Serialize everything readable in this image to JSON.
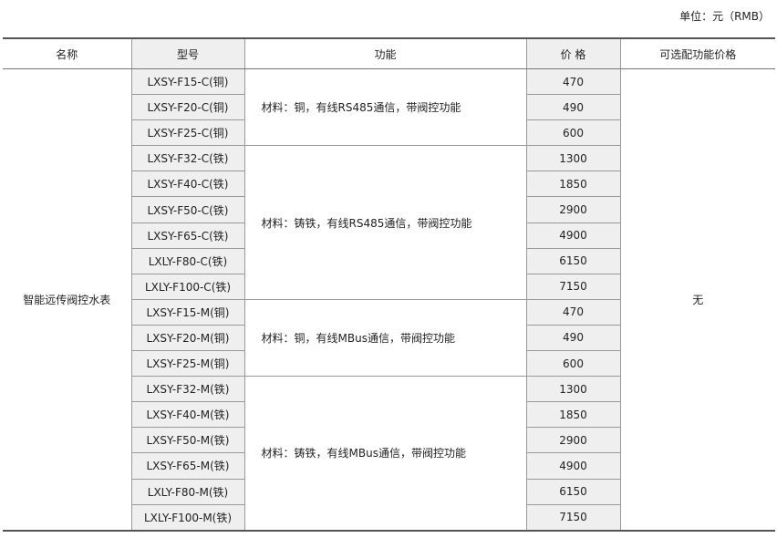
{
  "unit_label": "单位：元（RMB）",
  "headers": [
    "名称",
    "型号",
    "功能",
    "价 格",
    "可选配功能价格"
  ],
  "product_name": "智能远传阀控水表",
  "optional_price": "无",
  "groups": [
    {
      "function": "材料：铜，有线RS485通信，带阀控功能",
      "rows": [
        {
          "model": "LXSY-F15-C(铜)",
          "price": "470"
        },
        {
          "model": "LXSY-F20-C(铜)",
          "price": "490"
        },
        {
          "model": "LXSY-F25-C(铜)",
          "price": "600"
        }
      ]
    },
    {
      "function": "材料：铸铁，有线RS485通信，带阀控功能",
      "rows": [
        {
          "model": "LXSY-F32-C(铁)",
          "price": "1300"
        },
        {
          "model": "LXSY-F40-C(铁)",
          "price": "1850"
        },
        {
          "model": "LXSY-F50-C(铁)",
          "price": "2900"
        },
        {
          "model": "LXSY-F65-C(铁)",
          "price": "4900"
        },
        {
          "model": "LXLY-F80-C(铁)",
          "price": "6150"
        },
        {
          "model": "LXLY-F100-C(铁)",
          "price": "7150"
        }
      ]
    },
    {
      "function": "材料：铜，有线MBus通信，带阀控功能",
      "rows": [
        {
          "model": "LXSY-F15-M(铜)",
          "price": "470"
        },
        {
          "model": "LXSY-F20-M(铜)",
          "price": "490"
        },
        {
          "model": "LXSY-F25-M(铜)",
          "price": "600"
        }
      ]
    },
    {
      "function": "材料：铸铁，有线MBus通信，带阀控功能",
      "rows": [
        {
          "model": "LXSY-F32-M(铁)",
          "price": "1300"
        },
        {
          "model": "LXSY-F40-M(铁)",
          "price": "1850"
        },
        {
          "model": "LXSY-F50-M(铁)",
          "price": "2900"
        },
        {
          "model": "LXSY-F65-M(铁)",
          "price": "4900"
        },
        {
          "model": "LXLY-F80-M(铁)",
          "price": "6150"
        },
        {
          "model": "LXLY-F100-M(铁)",
          "price": "7150"
        }
      ]
    }
  ]
}
